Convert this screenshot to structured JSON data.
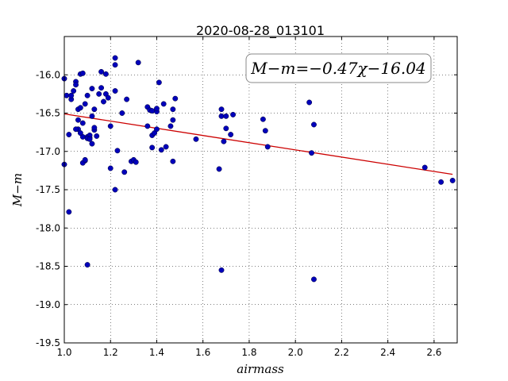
{
  "chart_data": {
    "type": "scatter",
    "title": "2020-08-28_013101",
    "xlabel": "airmass",
    "ylabel": "M−m",
    "xlim": [
      1.0,
      2.7
    ],
    "ylim": [
      -19.5,
      -15.5
    ],
    "xticks": [
      1.0,
      1.2,
      1.4,
      1.6,
      1.8,
      2.0,
      2.2,
      2.4,
      2.6
    ],
    "xtick_labels": [
      "1.0",
      "1.2",
      "1.4",
      "1.6",
      "1.8",
      "2.0",
      "2.2",
      "2.4",
      "2.6"
    ],
    "yticks": [
      -16.0,
      -16.5,
      -17.0,
      -17.5,
      -18.0,
      -18.5,
      -19.0,
      -19.5
    ],
    "ytick_labels": [
      "-16.0",
      "-16.5",
      "-17.0",
      "-17.5",
      "-18.0",
      "-18.5",
      "-19.0",
      "-19.5"
    ],
    "grid": true,
    "annotation": "M−m=−0.47χ−16.04",
    "fit": {
      "slope": -0.47,
      "intercept": -16.04,
      "x_range": [
        1.0,
        2.68
      ],
      "color": "#cc0000"
    },
    "point_color": "#0000bb",
    "series": [
      {
        "x": [
          1.0,
          1.01,
          1.02,
          1.03,
          1.05,
          1.05,
          1.06,
          1.07,
          1.08,
          1.03,
          1.04,
          1.06,
          1.07,
          1.08,
          1.09,
          1.1,
          1.11,
          1.12,
          1.13,
          1.15,
          1.16,
          1.17,
          1.18,
          1.19,
          1.2,
          1.22,
          1.22,
          1.23,
          1.22,
          1.05,
          1.06,
          1.08,
          1.09,
          1.1,
          1.11,
          1.12,
          1.13,
          1.14,
          1.12,
          1.13,
          1.1,
          1.11,
          1.08,
          1.09,
          1.07,
          1.0,
          1.02,
          1.1,
          1.16,
          1.18,
          1.2,
          1.22,
          1.25,
          1.26,
          1.27,
          1.29,
          1.3,
          1.31,
          1.32,
          1.36,
          1.37,
          1.38,
          1.38,
          1.39,
          1.4,
          1.4,
          1.41,
          1.42,
          1.43,
          1.44,
          1.46,
          1.47,
          1.47,
          1.48,
          1.47,
          1.36,
          1.38,
          1.4,
          1.57,
          1.67,
          1.68,
          1.68,
          1.69,
          1.7,
          1.7,
          1.72,
          1.73,
          1.68,
          1.86,
          1.87,
          1.88,
          2.06,
          2.08,
          2.07,
          2.08,
          2.56,
          2.63,
          2.68
        ],
        "y": [
          -16.05,
          -16.27,
          -16.78,
          -16.32,
          -16.09,
          -16.13,
          -16.45,
          -15.99,
          -15.98,
          -16.27,
          -16.21,
          -16.71,
          -16.43,
          -16.63,
          -16.38,
          -16.27,
          -16.82,
          -16.18,
          -16.45,
          -16.25,
          -16.17,
          -16.35,
          -16.25,
          -16.3,
          -16.67,
          -15.78,
          -15.87,
          -16.99,
          -16.21,
          -16.71,
          -16.59,
          -16.81,
          -17.12,
          -16.81,
          -16.79,
          -16.54,
          -16.72,
          -16.8,
          -16.9,
          -16.69,
          -16.83,
          -16.84,
          -17.15,
          -17.11,
          -16.76,
          -17.17,
          -17.79,
          -18.48,
          -15.96,
          -15.99,
          -17.22,
          -17.5,
          -16.5,
          -17.27,
          -16.32,
          -17.13,
          -17.11,
          -17.14,
          -15.84,
          -16.42,
          -16.46,
          -16.95,
          -16.79,
          -16.76,
          -16.48,
          -16.44,
          -16.1,
          -16.98,
          -16.38,
          -16.94,
          -16.67,
          -16.59,
          -16.45,
          -16.31,
          -17.13,
          -16.67,
          -16.47,
          -16.71,
          -16.84,
          -17.23,
          -16.45,
          -16.54,
          -16.87,
          -16.7,
          -16.54,
          -16.78,
          -16.52,
          -18.55,
          -16.58,
          -16.73,
          -16.94,
          -16.36,
          -16.65,
          -17.02,
          -18.67,
          -17.21,
          -17.4,
          -17.38
        ]
      }
    ]
  }
}
